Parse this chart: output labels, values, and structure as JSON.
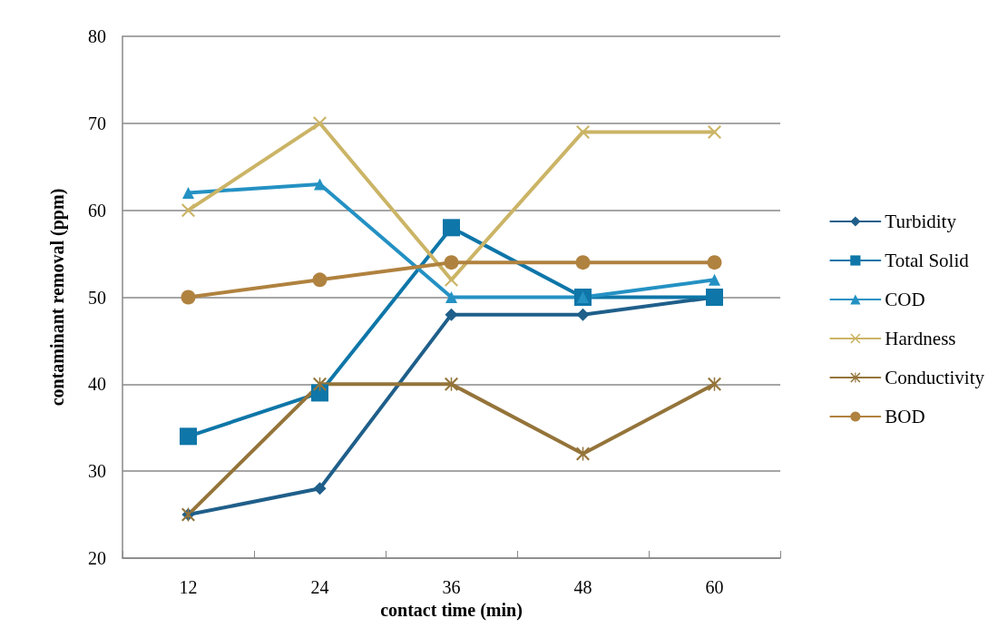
{
  "chart_data": {
    "type": "line",
    "xlabel": "contact time (min)",
    "ylabel": "contaminant removal (ppm)",
    "categories": [
      "12",
      "24",
      "36",
      "48",
      "60"
    ],
    "series": [
      {
        "name": "Turbidity",
        "color": "#1f5f8a",
        "marker": "diamond",
        "values": [
          25,
          28,
          48,
          48,
          50
        ]
      },
      {
        "name": "Total Solid",
        "color": "#0e76a8",
        "marker": "square",
        "values": [
          34,
          39,
          58,
          50,
          50
        ]
      },
      {
        "name": "COD",
        "color": "#2491c3",
        "marker": "triangle",
        "values": [
          62,
          63,
          50,
          50,
          52
        ]
      },
      {
        "name": "Hardness",
        "color": "#cbb466",
        "marker": "cross",
        "values": [
          60,
          70,
          52,
          69,
          69
        ]
      },
      {
        "name": "Conductivity",
        "color": "#94743a",
        "marker": "star",
        "values": [
          25,
          40,
          40,
          32,
          40
        ]
      },
      {
        "name": "BOD",
        "color": "#b0823f",
        "marker": "circle",
        "values": [
          50,
          52,
          54,
          54,
          54
        ]
      }
    ],
    "ylim": [
      20,
      80
    ],
    "yticks": [
      20,
      30,
      40,
      50,
      60,
      70,
      80
    ],
    "grid": "y",
    "legend": "right",
    "line_style": "solid"
  }
}
